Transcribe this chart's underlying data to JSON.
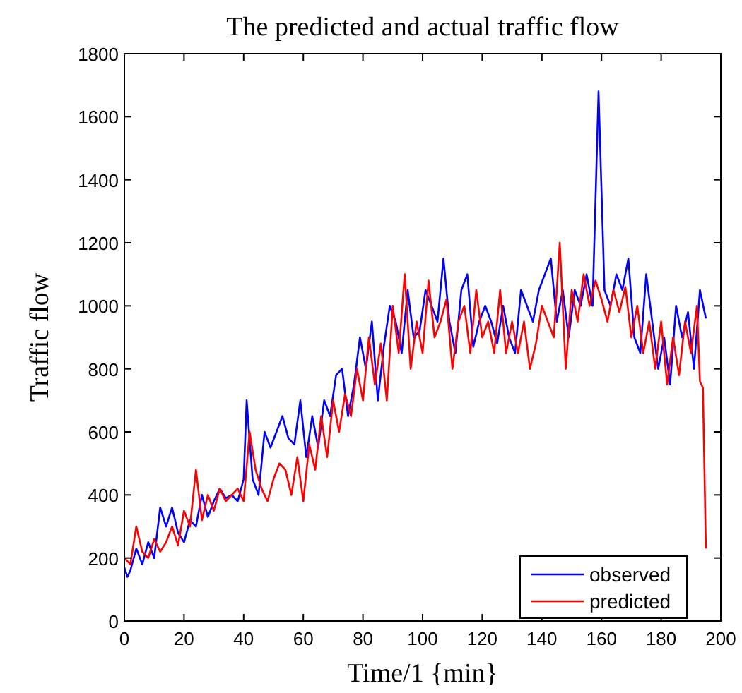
{
  "chart_data": {
    "type": "line",
    "title": "The predicted and actual traffic flow",
    "xlabel": "Time/1 {min}",
    "ylabel": "Traffic flow",
    "xlim": [
      0,
      200
    ],
    "xticks": [
      0,
      20,
      40,
      60,
      80,
      100,
      120,
      140,
      160,
      180,
      200
    ],
    "ylim": [
      0,
      1800
    ],
    "yticks": [
      0,
      200,
      400,
      600,
      800,
      1000,
      1200,
      1400,
      1600,
      1800
    ],
    "grid": false,
    "legend": "bottom right",
    "line_style": "solid",
    "series": [
      {
        "name": "observed",
        "color": "#0000ff",
        "x": [
          0,
          1,
          2,
          4,
          6,
          8,
          10,
          12,
          14,
          16,
          18,
          20,
          22,
          24,
          26,
          28,
          30,
          32,
          34,
          36,
          38,
          40,
          41,
          43,
          45,
          47,
          49,
          51,
          53,
          55,
          57,
          59,
          61,
          63,
          65,
          67,
          69,
          71,
          73,
          75,
          77,
          79,
          81,
          83,
          85,
          87,
          89,
          91,
          93,
          95,
          97,
          99,
          101,
          103,
          105,
          107,
          109,
          111,
          113,
          115,
          117,
          119,
          121,
          123,
          125,
          127,
          129,
          131,
          133,
          135,
          137,
          139,
          141,
          143,
          145,
          147,
          149,
          151,
          153,
          155,
          157,
          159,
          161,
          163,
          165,
          167,
          169,
          171,
          173,
          175,
          177,
          179,
          181,
          183,
          185,
          187,
          189,
          191,
          193,
          195
        ],
        "values": [
          170,
          140,
          160,
          230,
          180,
          250,
          200,
          360,
          300,
          360,
          280,
          250,
          320,
          300,
          400,
          330,
          380,
          420,
          390,
          400,
          380,
          450,
          700,
          450,
          400,
          600,
          550,
          600,
          650,
          580,
          560,
          700,
          520,
          650,
          550,
          700,
          650,
          780,
          800,
          650,
          750,
          900,
          800,
          950,
          700,
          870,
          1000,
          950,
          850,
          1050,
          900,
          920,
          1050,
          1000,
          950,
          1150,
          950,
          850,
          1050,
          1100,
          870,
          950,
          1000,
          950,
          880,
          1000,
          900,
          850,
          1050,
          1000,
          950,
          1050,
          1100,
          1150,
          950,
          1050,
          900,
          1050,
          1000,
          1100,
          1000,
          1680,
          1050,
          1000,
          1100,
          1050,
          1150,
          900,
          850,
          1100,
          950,
          800,
          900,
          750,
          1000,
          900,
          980,
          800,
          1050,
          960
        ]
      },
      {
        "name": "predicted",
        "color": "#ff0000",
        "x": [
          0,
          2,
          4,
          6,
          8,
          10,
          12,
          14,
          16,
          18,
          20,
          22,
          24,
          26,
          28,
          30,
          32,
          34,
          36,
          38,
          40,
          42,
          44,
          46,
          48,
          50,
          52,
          54,
          56,
          58,
          60,
          62,
          64,
          66,
          68,
          70,
          72,
          74,
          76,
          78,
          80,
          82,
          84,
          86,
          88,
          90,
          92,
          94,
          96,
          98,
          100,
          102,
          104,
          106,
          108,
          110,
          112,
          114,
          116,
          118,
          120,
          122,
          124,
          126,
          128,
          130,
          132,
          134,
          136,
          138,
          140,
          142,
          144,
          146,
          148,
          150,
          152,
          154,
          156,
          158,
          160,
          162,
          164,
          166,
          168,
          170,
          172,
          174,
          176,
          178,
          180,
          182,
          184,
          186,
          188,
          190,
          192,
          193,
          194,
          195
        ],
        "values": [
          200,
          180,
          300,
          220,
          200,
          260,
          220,
          250,
          300,
          240,
          350,
          300,
          480,
          320,
          400,
          350,
          420,
          380,
          400,
          420,
          380,
          600,
          480,
          420,
          380,
          450,
          500,
          480,
          400,
          520,
          380,
          560,
          480,
          650,
          520,
          700,
          600,
          720,
          650,
          800,
          700,
          900,
          750,
          880,
          700,
          1000,
          850,
          1100,
          800,
          950,
          850,
          1080,
          900,
          950,
          1020,
          800,
          950,
          1000,
          850,
          1050,
          900,
          950,
          850,
          1050,
          850,
          950,
          850,
          950,
          800,
          880,
          1000,
          950,
          900,
          1200,
          800,
          1050,
          950,
          1100,
          1000,
          1080,
          1020,
          950,
          1050,
          980,
          1060,
          900,
          1000,
          850,
          950,
          800,
          950,
          750,
          900,
          780,
          950,
          850,
          1000,
          760,
          740,
          230
        ]
      }
    ]
  }
}
